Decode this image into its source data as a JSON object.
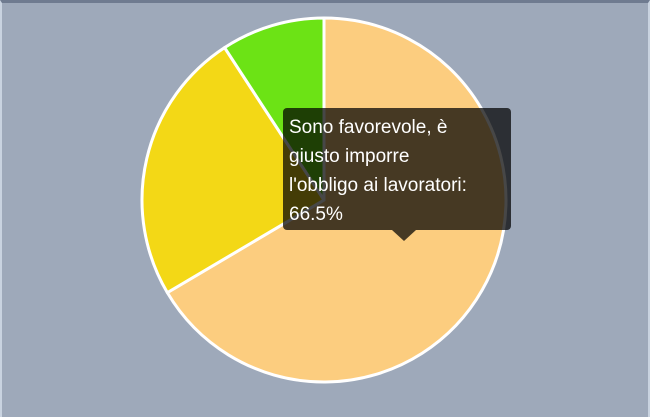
{
  "chart_data": {
    "type": "pie",
    "slices": [
      {
        "label": "Sono favorevole, è giusto imporre l'obbligo ai lavoratori",
        "value": 66.5,
        "color": "#fccd7f"
      },
      {
        "label": "",
        "value": 24.3,
        "color": "#f3d816"
      },
      {
        "label": "",
        "value": 9.2,
        "color": "#6ce315"
      }
    ],
    "start_angle": "top",
    "direction": "clockwise",
    "slice_border_color": "#ffffff",
    "background_color": "#9ea9ba"
  },
  "tooltip": {
    "lines": [
      "Sono favorevole, è",
      "giusto imporre",
      "l'obbligo ai lavoratori:",
      "66.5%"
    ]
  }
}
